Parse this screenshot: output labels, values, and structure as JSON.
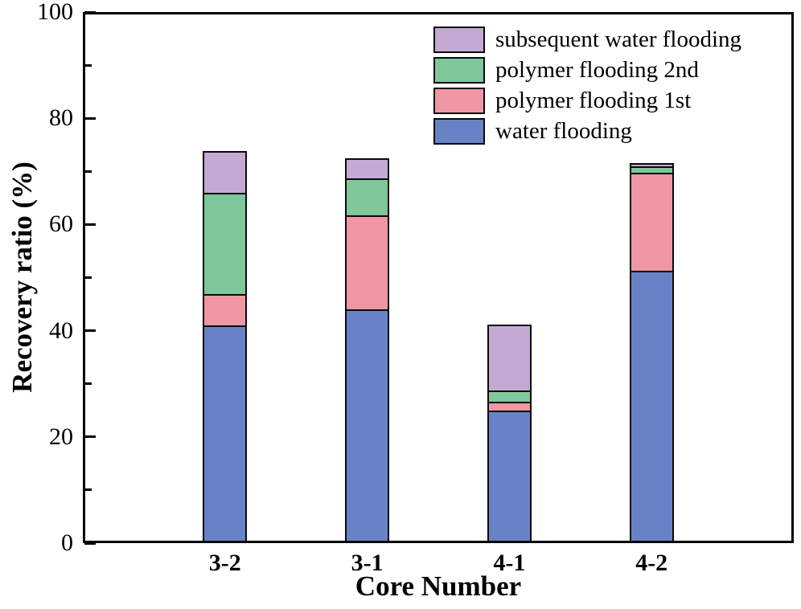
{
  "chart_data": {
    "type": "bar",
    "stacked": true,
    "title": "",
    "xlabel": "Core Number",
    "ylabel": "Recovery ratio (%)",
    "ylim": [
      0,
      100
    ],
    "y_major_ticks": [
      0,
      20,
      40,
      60,
      80,
      100
    ],
    "y_minor_ticks": [
      10,
      30,
      50,
      70,
      90
    ],
    "grid": false,
    "axis_color": "#000000",
    "bar_border_color": "#0a0a0a",
    "categories": [
      "3-2",
      "3-1",
      "4-1",
      "4-2"
    ],
    "series": [
      {
        "name": "water flooding",
        "color": "#6882c5",
        "values": [
          41.0,
          44.0,
          25.0,
          51.3
        ]
      },
      {
        "name": "polymer flooding 1st",
        "color": "#ef97a4",
        "values": [
          5.9,
          17.8,
          1.6,
          18.4
        ]
      },
      {
        "name": "polymer flooding 2nd",
        "color": "#80c79c",
        "values": [
          19.0,
          6.9,
          2.2,
          1.2
        ]
      },
      {
        "name": "subsequent water flooding",
        "color": "#c4aad2",
        "values": [
          7.9,
          3.7,
          12.3,
          0.7
        ]
      }
    ],
    "totals": [
      73.8,
      72.4,
      41.1,
      71.6
    ],
    "legend": {
      "position": "top-right-inside",
      "order": [
        "subsequent water flooding",
        "polymer flooding 2nd",
        "polymer flooding 1st",
        "water flooding"
      ]
    }
  }
}
